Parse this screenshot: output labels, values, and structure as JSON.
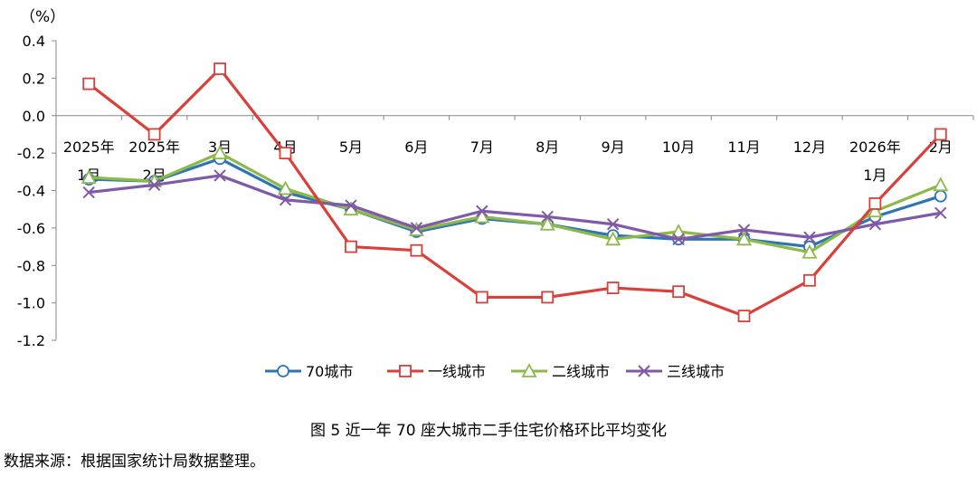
{
  "chart_data": {
    "type": "line",
    "unit_label": "（%）",
    "ylim": [
      -1.2,
      0.4
    ],
    "y_ticks": [
      "0.4",
      "0.2",
      "0.0",
      "-0.2",
      "-0.4",
      "-0.6",
      "-0.8",
      "-1.0",
      "-1.2"
    ],
    "categories": [
      [
        "2025年",
        "1月"
      ],
      [
        "2025年",
        "2月"
      ],
      [
        "3月"
      ],
      [
        "4月"
      ],
      [
        "5月"
      ],
      [
        "6月"
      ],
      [
        "7月"
      ],
      [
        "8月"
      ],
      [
        "9月"
      ],
      [
        "10月"
      ],
      [
        "11月"
      ],
      [
        "12月"
      ],
      [
        "2026年",
        "1月"
      ],
      [
        "2月"
      ]
    ],
    "grid": false,
    "legend_position": "bottom",
    "series": [
      {
        "name": "70城市",
        "color": "#2E75B6",
        "marker": "circle",
        "values": [
          -0.34,
          -0.35,
          -0.23,
          -0.41,
          -0.5,
          -0.62,
          -0.55,
          -0.58,
          -0.64,
          -0.66,
          -0.66,
          -0.7,
          -0.54,
          -0.43
        ]
      },
      {
        "name": "一线城市",
        "color": "#D9403A",
        "marker": "square",
        "values": [
          0.17,
          -0.1,
          0.25,
          -0.2,
          -0.7,
          -0.72,
          -0.97,
          -0.97,
          -0.92,
          -0.94,
          -1.07,
          -0.88,
          -0.47,
          -0.1
        ]
      },
      {
        "name": "二线城市",
        "color": "#8DB94A",
        "marker": "triangle",
        "values": [
          -0.33,
          -0.35,
          -0.2,
          -0.39,
          -0.5,
          -0.61,
          -0.54,
          -0.58,
          -0.66,
          -0.62,
          -0.66,
          -0.73,
          -0.51,
          -0.37
        ]
      },
      {
        "name": "三线城市",
        "color": "#8059A8",
        "marker": "x",
        "values": [
          -0.41,
          -0.37,
          -0.32,
          -0.45,
          -0.48,
          -0.6,
          -0.51,
          -0.54,
          -0.58,
          -0.66,
          -0.61,
          -0.65,
          -0.58,
          -0.52
        ]
      }
    ]
  },
  "caption": "图 5  近一年 70 座大城市二手住宅价格环比平均变化",
  "source": "数据来源：根据国家统计局数据整理。"
}
